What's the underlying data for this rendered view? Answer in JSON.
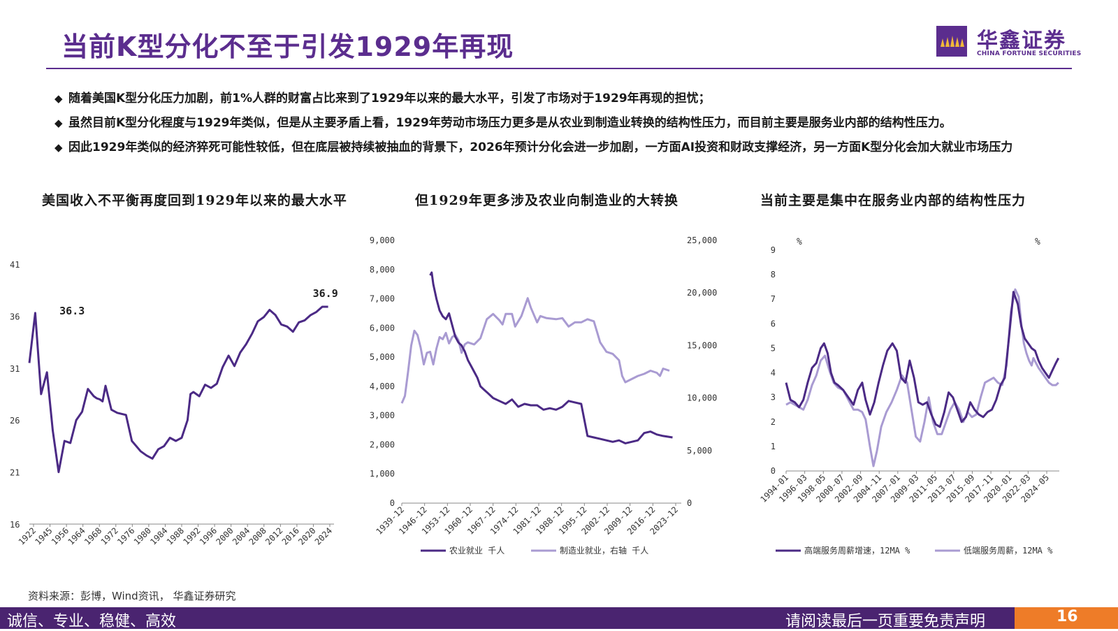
{
  "header": {
    "title": "当前K型分化不至于引发1929年再现",
    "logo_cn": "华鑫证券",
    "logo_en": "CHINA FORTUNE SECURITIES"
  },
  "bullets": [
    {
      "mark": "◆",
      "text": "随着美国K型分化压力加剧，前1%人群的财富占比来到了1929年以来的最大水平，引发了市场对于1929年再现的担忧；"
    },
    {
      "mark": "◆",
      "text": "虽然目前K型分化程度与1929年类似，但是从主要矛盾上看，1929年劳动市场压力更多是从农业到制造业转换的结构性压力，而目前主要是服务业内部的结构性压力。"
    },
    {
      "mark": "◆",
      "text": "因此1929年类似的经济猝死可能性较低，但在底层被持续被抽血的背景下，2026年预计分化会进一步加剧，一方面AI投资和财政支撑经济，另一方面K型分化会加大就业市场压力"
    }
  ],
  "source": "资料来源：彭博，Wind资讯， 华鑫证券研究",
  "footer": {
    "slogan": "诚信、专业、稳健、高效",
    "disclaimer": "请阅读最后一页重要免责声明",
    "page": "16"
  },
  "colors": {
    "brand": "#5b2d8e",
    "dark_line": "#4b2a85",
    "light_line": "#a99bd2",
    "accent": "#ee7c28"
  },
  "chart_data": [
    {
      "type": "line",
      "title": "美国收入不平衡再度回到1929年以来的最大水平",
      "x_tick_labels": [
        "1922",
        "1945",
        "1956",
        "1964",
        "1968",
        "1972",
        "1976",
        "1980",
        "1984",
        "1988",
        "1992",
        "1996",
        "2000",
        "2004",
        "2008",
        "2012",
        "2016",
        "2020",
        "2024"
      ],
      "ylim": [
        16,
        41
      ],
      "y_ticks": [
        16,
        21,
        26,
        31,
        36,
        41
      ],
      "annotations": [
        {
          "label": "36.3",
          "x": 1928,
          "y": 36.3
        },
        {
          "label": "36.9",
          "x": 2024,
          "y": 36.9
        }
      ],
      "series": [
        {
          "x": [
            1922,
            1924,
            1926,
            1928,
            1930,
            1932,
            1934,
            1936,
            1938,
            1940,
            1942,
            1944,
            1945,
            1946,
            1947,
            1948,
            1950,
            1952,
            1955,
            1957,
            1960,
            1962,
            1964,
            1966,
            1968,
            1970,
            1972,
            1974,
            1976,
            1977,
            1978,
            1980,
            1982,
            1984,
            1986,
            1988,
            1990,
            1992,
            1994,
            1996,
            1998,
            2000,
            2002,
            2004,
            2006,
            2008,
            2010,
            2012,
            2014,
            2016,
            2018,
            2020,
            2022,
            2024
          ],
          "values": [
            31.5,
            36.3,
            28.5,
            30.6,
            25,
            21,
            24,
            23.8,
            26,
            26.8,
            29,
            28.3,
            28.1,
            28,
            27.8,
            29.3,
            27,
            26.7,
            26.5,
            24,
            23,
            22.6,
            22.3,
            23.2,
            23.5,
            24.3,
            24,
            24.3,
            26,
            28.5,
            28.7,
            28.3,
            29.4,
            29.1,
            29.5,
            31.1,
            32.2,
            31.2,
            32.5,
            33.3,
            34.3,
            35.5,
            35.9,
            36.6,
            36.1,
            35.2,
            35.0,
            34.5,
            35.4,
            35.6,
            36.1,
            36.4,
            36.9,
            36.9
          ]
        }
      ]
    },
    {
      "type": "line",
      "title": "但1929年更多涉及农业向制造业的大转换",
      "x_tick_labels": [
        "1939-12",
        "1946-12",
        "1953-12",
        "1960-12",
        "1967-12",
        "1974-12",
        "1981-12",
        "1988-12",
        "1995-12",
        "2002-12",
        "2009-12",
        "2016-12",
        "2023-12"
      ],
      "y_left": {
        "ylim": [
          0,
          9000
        ],
        "ticks": [
          "0",
          "1,000",
          "2,000",
          "3,000",
          "4,000",
          "5,000",
          "6,000",
          "7,000",
          "8,000",
          "9,000"
        ]
      },
      "y_right": {
        "ylim": [
          0,
          25000
        ],
        "ticks": [
          "0",
          "5,000",
          "10,000",
          "15,000",
          "20,000",
          "25,000"
        ]
      },
      "series": [
        {
          "name": "农业就业  千人",
          "axis": "left",
          "x": [
            1948,
            1948.5,
            1949,
            1950,
            1951,
            1952,
            1953,
            1954,
            1955,
            1956,
            1957,
            1958,
            1959,
            1960,
            1961,
            1962,
            1963,
            1964,
            1965,
            1966,
            1967,
            1968,
            1970,
            1972,
            1974,
            1976,
            1978,
            1980,
            1982,
            1984,
            1986,
            1988,
            1990,
            1992,
            1994,
            1996,
            1998,
            2000,
            2002,
            2004,
            2006,
            2008,
            2010,
            2012,
            2014,
            2016,
            2018,
            2020,
            2022,
            2025
          ],
          "values": [
            7800,
            7900,
            7500,
            7000,
            6600,
            6400,
            6300,
            6500,
            6100,
            5700,
            5500,
            5400,
            5200,
            4900,
            4700,
            4500,
            4300,
            4000,
            3900,
            3800,
            3700,
            3600,
            3500,
            3400,
            3550,
            3300,
            3400,
            3350,
            3350,
            3200,
            3250,
            3200,
            3300,
            3500,
            3450,
            3400,
            2300,
            2250,
            2200,
            2150,
            2100,
            2150,
            2050,
            2100,
            2150,
            2400,
            2450,
            2350,
            2300,
            2250
          ]
        },
        {
          "name": "制造业就业，右轴  千人",
          "axis": "right",
          "x": [
            1939,
            1940,
            1941,
            1942,
            1943,
            1944,
            1945,
            1946,
            1947,
            1948,
            1949,
            1950,
            1951,
            1952,
            1953,
            1954,
            1955,
            1956,
            1957,
            1958,
            1959,
            1960,
            1962,
            1964,
            1966,
            1968,
            1970,
            1971,
            1972,
            1974,
            1975,
            1977,
            1979,
            1980,
            1982,
            1983,
            1985,
            1988,
            1990,
            1992,
            1994,
            1996,
            1998,
            2000,
            2001,
            2002,
            2004,
            2006,
            2008,
            2009,
            2010,
            2012,
            2014,
            2016,
            2018,
            2020,
            2021,
            2022,
            2024
          ],
          "values": [
            9500,
            10200,
            12500,
            15000,
            16400,
            16000,
            14800,
            13200,
            14300,
            14400,
            13200,
            14700,
            15800,
            15600,
            16200,
            15200,
            15800,
            16000,
            15500,
            14300,
            15100,
            15300,
            15100,
            15700,
            17500,
            18000,
            17400,
            17000,
            18000,
            18000,
            16800,
            17800,
            19500,
            18600,
            17200,
            17800,
            17600,
            17500,
            17600,
            16800,
            17200,
            17200,
            17500,
            17300,
            16300,
            15300,
            14400,
            14200,
            13600,
            12100,
            11500,
            11800,
            12100,
            12300,
            12600,
            12400,
            12100,
            12800,
            12600
          ]
        }
      ]
    },
    {
      "type": "line",
      "title": "当前主要是集中在服务业内部的结构性压力",
      "unit_left": "%",
      "unit_right": "%",
      "x_tick_labels": [
        "1994-01",
        "1996-03",
        "1998-05",
        "2000-07",
        "2002-09",
        "2004-11",
        "2007-01",
        "2009-03",
        "2011-05",
        "2013-07",
        "2015-09",
        "2017-11",
        "2020-01",
        "2022-03",
        "2024-05"
      ],
      "ylim": [
        0,
        9
      ],
      "y_ticks": [
        0,
        1,
        2,
        3,
        4,
        5,
        6,
        7,
        8,
        9
      ],
      "series": [
        {
          "name": "高端服务周薪增速，12MA %",
          "x": [
            1994.0,
            1994.5,
            1995.0,
            1995.5,
            1996.0,
            1996.5,
            1997.0,
            1997.5,
            1998.0,
            1998.4,
            1998.8,
            1999.2,
            1999.6,
            2000.0,
            2000.6,
            2001.2,
            2001.8,
            2002.3,
            2002.8,
            2003.2,
            2003.7,
            2004.2,
            2004.7,
            2005.2,
            2005.7,
            2006.3,
            2006.8,
            2007.3,
            2007.8,
            2008.3,
            2008.8,
            2009.3,
            2009.8,
            2010.3,
            2010.8,
            2011.3,
            2011.8,
            2012.3,
            2012.8,
            2013.3,
            2013.8,
            2014.3,
            2014.8,
            2015.3,
            2015.8,
            2016.3,
            2016.8,
            2017.3,
            2017.8,
            2018.3,
            2018.8,
            2019.3,
            2019.8,
            2020.3,
            2020.8,
            2021.2,
            2021.6,
            2022.0,
            2022.4,
            2022.8,
            2023.2,
            2023.6,
            2024.0,
            2024.4,
            2024.8,
            2025.2,
            2025.5
          ],
          "values": [
            3.6,
            2.9,
            2.8,
            2.6,
            2.9,
            3.6,
            4.2,
            4.4,
            5.0,
            5.2,
            4.8,
            4.0,
            3.6,
            3.5,
            3.3,
            3.0,
            2.7,
            3.3,
            3.6,
            2.9,
            2.3,
            2.8,
            3.6,
            4.3,
            4.9,
            5.2,
            4.9,
            3.8,
            3.6,
            4.5,
            3.8,
            2.8,
            2.7,
            2.8,
            2.3,
            1.9,
            1.8,
            2.4,
            3.2,
            3.0,
            2.5,
            2.0,
            2.2,
            2.8,
            2.5,
            2.3,
            2.2,
            2.4,
            2.5,
            2.9,
            3.5,
            3.8,
            5.5,
            7.3,
            6.8,
            5.9,
            5.4,
            5.2,
            5.0,
            4.9,
            4.5,
            4.2,
            4.0,
            3.8,
            4.1,
            4.4,
            4.6
          ]
        },
        {
          "name": "低端服务周薪，12MA %",
          "x": [
            1994.0,
            1994.5,
            1995.0,
            1995.5,
            1996.0,
            1996.5,
            1997.0,
            1997.5,
            1998.0,
            1998.5,
            1999.0,
            1999.5,
            2000.0,
            2000.6,
            2001.2,
            2001.8,
            2002.3,
            2002.8,
            2003.2,
            2003.7,
            2004.1,
            2004.5,
            2005.0,
            2005.6,
            2006.2,
            2006.8,
            2007.4,
            2008.0,
            2008.5,
            2009.0,
            2009.5,
            2010.0,
            2010.5,
            2011.0,
            2011.5,
            2012.0,
            2012.5,
            2013.0,
            2013.5,
            2014.0,
            2014.5,
            2015.0,
            2015.5,
            2016.0,
            2016.5,
            2017.0,
            2017.5,
            2018.0,
            2018.5,
            2019.0,
            2019.5,
            2020.0,
            2020.5,
            2020.9,
            2021.2,
            2021.5,
            2021.8,
            2022.1,
            2022.4,
            2022.6,
            2022.9,
            2023.2,
            2023.6,
            2024.0,
            2024.4,
            2024.8,
            2025.2,
            2025.5
          ],
          "values": [
            2.7,
            2.8,
            2.7,
            2.6,
            2.5,
            2.9,
            3.5,
            3.9,
            4.5,
            4.7,
            4.1,
            3.6,
            3.4,
            3.3,
            2.9,
            2.5,
            2.5,
            2.4,
            2.1,
            1.0,
            0.2,
            0.8,
            1.8,
            2.4,
            2.8,
            3.3,
            3.9,
            3.6,
            2.5,
            1.4,
            1.2,
            2.0,
            3.0,
            2.0,
            1.5,
            1.5,
            2.0,
            2.5,
            2.8,
            2.5,
            2.0,
            2.4,
            2.2,
            2.3,
            3.0,
            3.6,
            3.7,
            3.8,
            3.6,
            3.5,
            4.3,
            6.5,
            7.4,
            7.1,
            6.0,
            5.2,
            4.8,
            4.5,
            4.3,
            4.6,
            4.4,
            4.2,
            4.0,
            3.8,
            3.6,
            3.5,
            3.5,
            3.6
          ]
        }
      ]
    }
  ]
}
